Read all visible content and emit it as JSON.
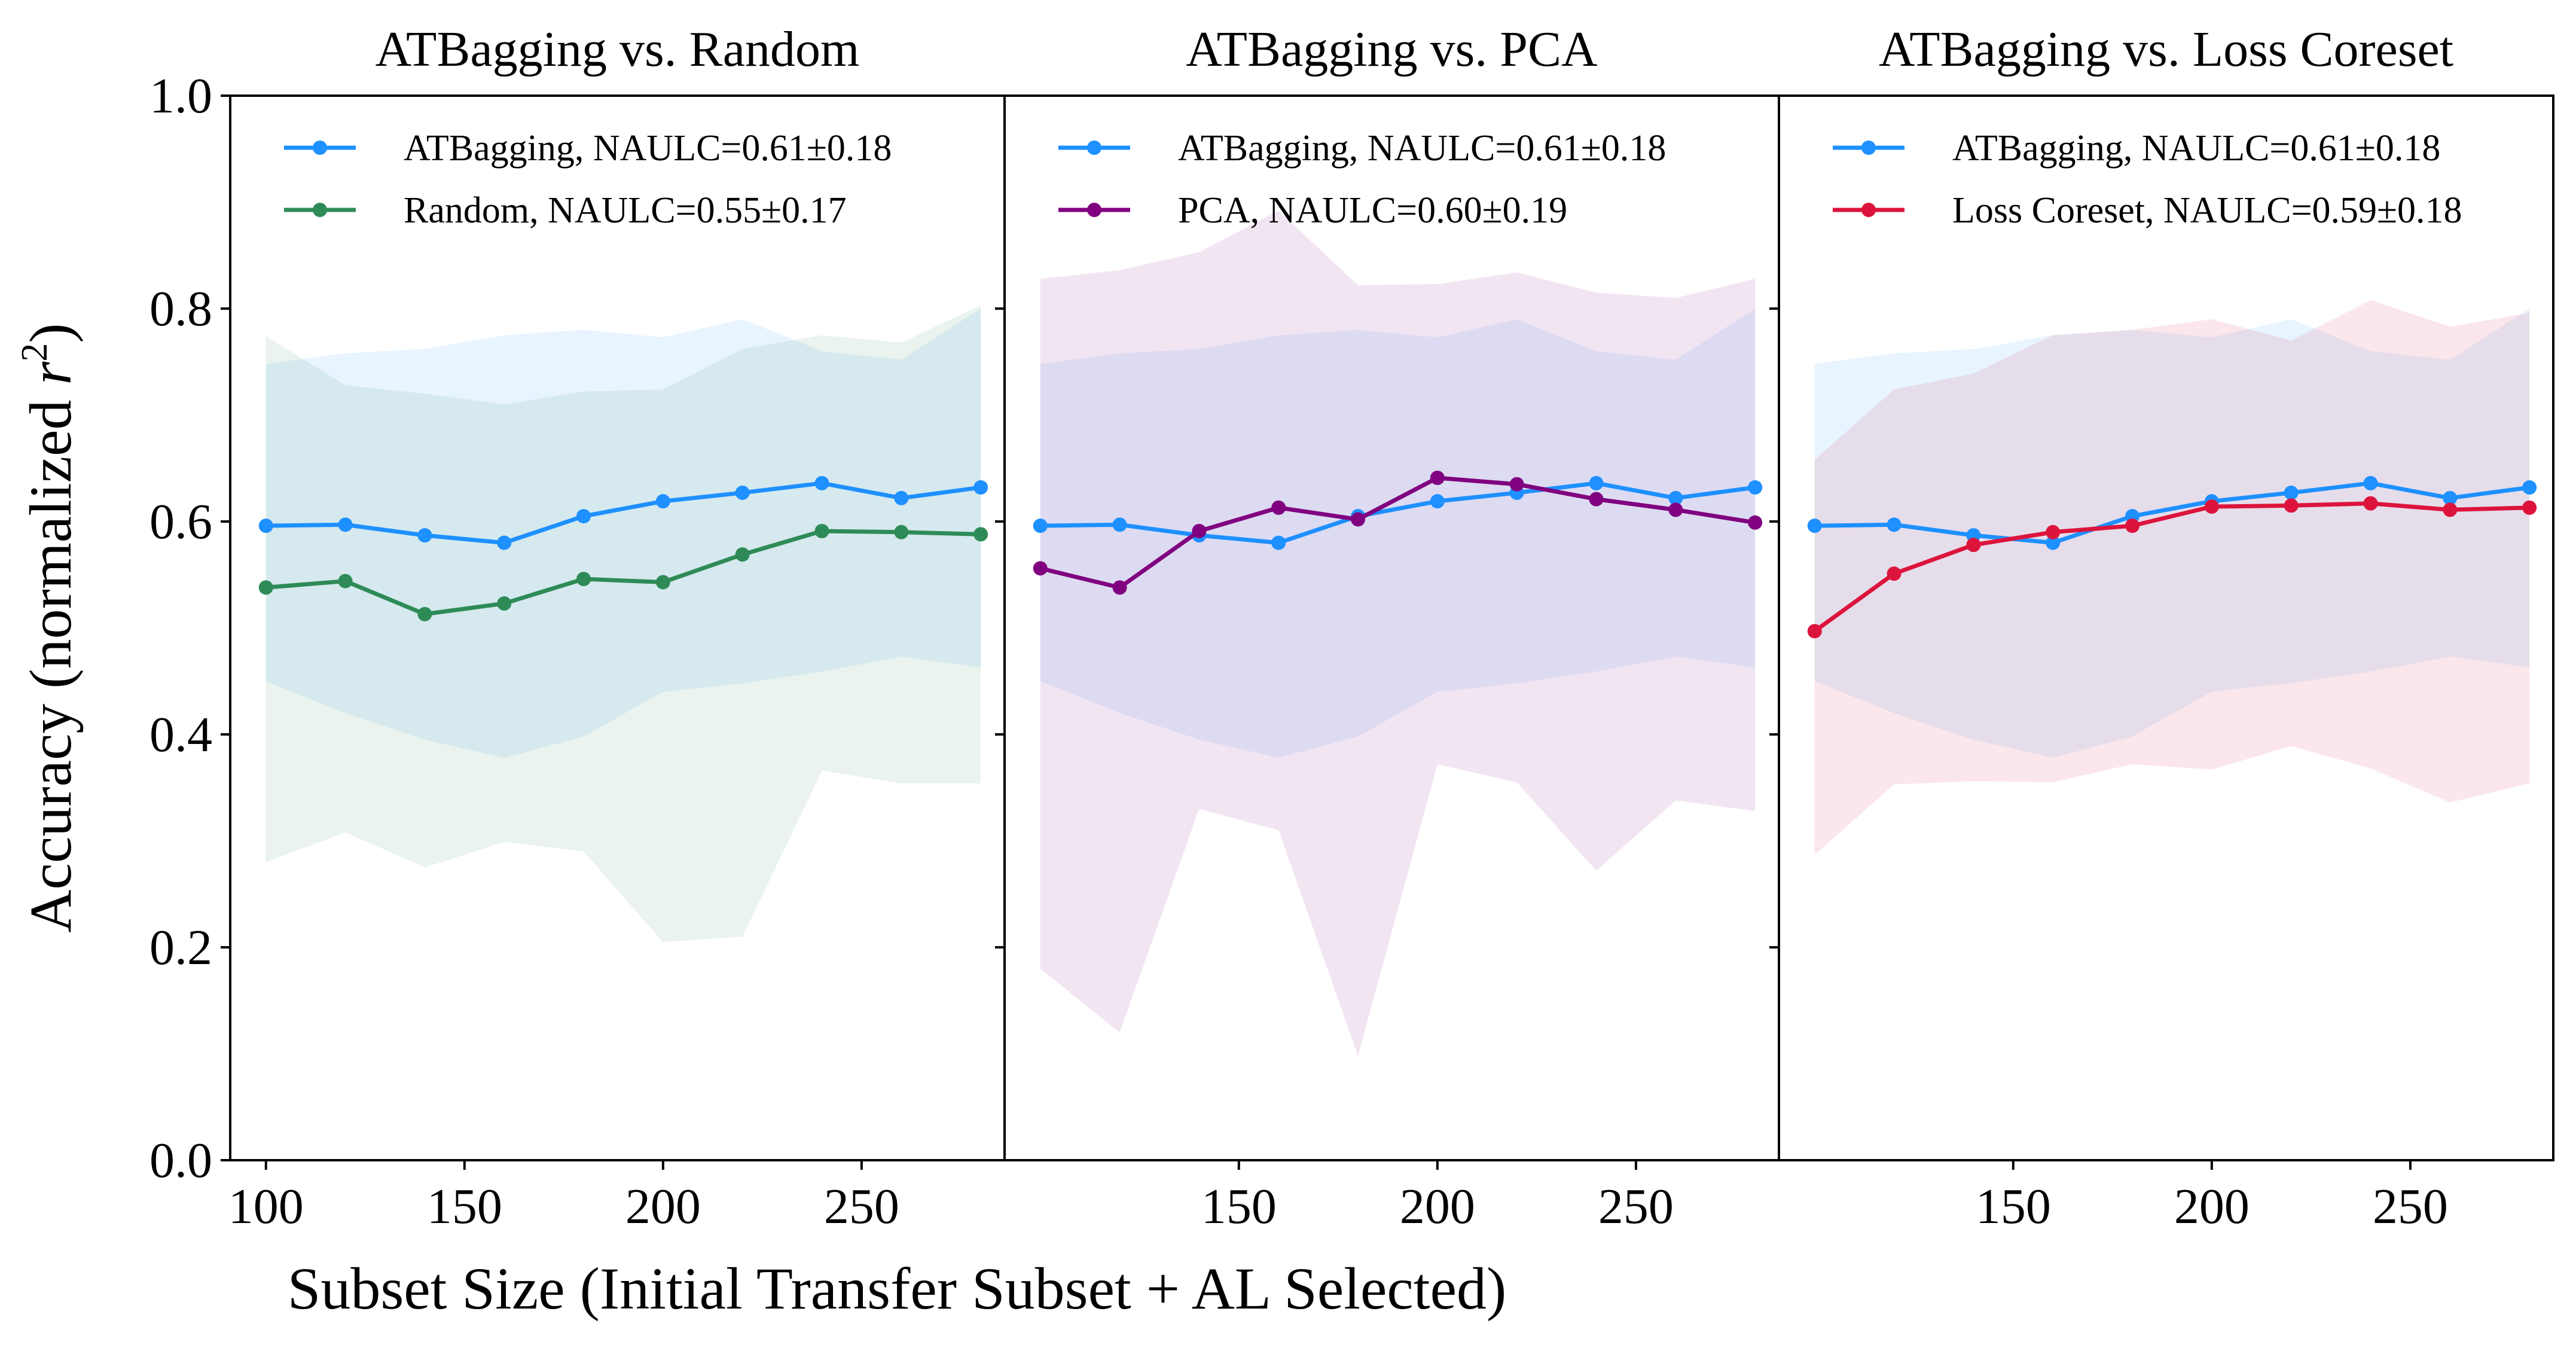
{
  "figure": {
    "ylabel": "Accuracy (normalized r²)",
    "xlabel": "Subset Size (Initial Transfer Subset + AL Selected)",
    "yticks": [
      "0.0",
      "0.2",
      "0.4",
      "0.6",
      "0.8",
      "1.0"
    ]
  },
  "chart_data": [
    {
      "type": "line",
      "title": "ATBagging vs. Random",
      "xlim": [
        91,
        286
      ],
      "ylim": [
        0,
        1
      ],
      "xticks": [
        100,
        150,
        200,
        250
      ],
      "legend_loc": "upper-left",
      "series": [
        {
          "name": "ATBagging",
          "label": "ATBagging, NAULC=0.61±0.18",
          "color": "#1e90ff",
          "x": [
            100,
            120,
            140,
            160,
            180,
            200,
            220,
            240,
            260,
            280
          ],
          "y": [
            0.596,
            0.597,
            0.587,
            0.58,
            0.605,
            0.619,
            0.627,
            0.636,
            0.622,
            0.632
          ],
          "lower": [
            0.45,
            0.42,
            0.395,
            0.378,
            0.398,
            0.44,
            0.448,
            0.459,
            0.473,
            0.463
          ],
          "upper": [
            0.748,
            0.758,
            0.762,
            0.775,
            0.78,
            0.773,
            0.79,
            0.76,
            0.752,
            0.8
          ]
        },
        {
          "name": "Random",
          "label": "Random, NAULC=0.55±0.17",
          "color": "#2e8b57",
          "x": [
            100,
            120,
            140,
            160,
            180,
            200,
            220,
            240,
            260,
            280
          ],
          "y": [
            0.538,
            0.544,
            0.513,
            0.523,
            0.546,
            0.543,
            0.569,
            0.591,
            0.59,
            0.588
          ],
          "lower": [
            0.28,
            0.308,
            0.275,
            0.299,
            0.29,
            0.205,
            0.21,
            0.366,
            0.354,
            0.354
          ],
          "upper": [
            0.774,
            0.728,
            0.72,
            0.71,
            0.722,
            0.724,
            0.762,
            0.775,
            0.768,
            0.803
          ]
        }
      ]
    },
    {
      "type": "line",
      "title": "ATBagging vs. PCA",
      "xlim": [
        91,
        286
      ],
      "ylim": [
        0,
        1
      ],
      "xticks": [
        150,
        200,
        250
      ],
      "legend_loc": "upper-left",
      "series": [
        {
          "name": "ATBagging",
          "label": "ATBagging, NAULC=0.61±0.18",
          "color": "#1e90ff",
          "x": [
            100,
            120,
            140,
            160,
            180,
            200,
            220,
            240,
            260,
            280
          ],
          "y": [
            0.596,
            0.597,
            0.587,
            0.58,
            0.605,
            0.619,
            0.627,
            0.636,
            0.622,
            0.632
          ],
          "lower": [
            0.45,
            0.42,
            0.395,
            0.378,
            0.398,
            0.44,
            0.448,
            0.459,
            0.473,
            0.463
          ],
          "upper": [
            0.748,
            0.758,
            0.762,
            0.775,
            0.78,
            0.773,
            0.79,
            0.76,
            0.752,
            0.8
          ]
        },
        {
          "name": "PCA",
          "label": "PCA, NAULC=0.60±0.19",
          "color": "#800080",
          "x": [
            100,
            120,
            140,
            160,
            180,
            200,
            220,
            240,
            260,
            280
          ],
          "y": [
            0.556,
            0.538,
            0.591,
            0.613,
            0.602,
            0.641,
            0.635,
            0.621,
            0.611,
            0.599
          ],
          "lower": [
            0.18,
            0.12,
            0.33,
            0.31,
            0.098,
            0.372,
            0.355,
            0.272,
            0.338,
            0.328
          ],
          "upper": [
            0.828,
            0.836,
            0.853,
            0.892,
            0.822,
            0.823,
            0.834,
            0.815,
            0.81,
            0.828
          ]
        }
      ]
    },
    {
      "type": "line",
      "title": "ATBagging vs. Loss Coreset",
      "xlim": [
        91,
        286
      ],
      "ylim": [
        0,
        1
      ],
      "xticks": [
        150,
        200,
        250
      ],
      "legend_loc": "upper-left",
      "series": [
        {
          "name": "ATBagging",
          "label": "ATBagging, NAULC=0.61±0.18",
          "color": "#1e90ff",
          "x": [
            100,
            120,
            140,
            160,
            180,
            200,
            220,
            240,
            260,
            280
          ],
          "y": [
            0.596,
            0.597,
            0.587,
            0.58,
            0.605,
            0.619,
            0.627,
            0.636,
            0.622,
            0.632
          ],
          "lower": [
            0.45,
            0.42,
            0.395,
            0.378,
            0.398,
            0.44,
            0.448,
            0.459,
            0.473,
            0.463
          ],
          "upper": [
            0.748,
            0.758,
            0.762,
            0.775,
            0.78,
            0.773,
            0.79,
            0.76,
            0.752,
            0.8
          ]
        },
        {
          "name": "Loss Coreset",
          "label": "Loss Coreset, NAULC=0.59±0.18",
          "color": "#dc143c",
          "x": [
            100,
            120,
            140,
            160,
            180,
            200,
            220,
            240,
            260,
            280
          ],
          "y": [
            0.497,
            0.551,
            0.578,
            0.59,
            0.596,
            0.614,
            0.615,
            0.617,
            0.611,
            0.613
          ],
          "lower": [
            0.287,
            0.353,
            0.356,
            0.355,
            0.372,
            0.367,
            0.389,
            0.368,
            0.336,
            0.354
          ],
          "upper": [
            0.658,
            0.724,
            0.739,
            0.775,
            0.78,
            0.79,
            0.77,
            0.808,
            0.783,
            0.796
          ]
        }
      ]
    }
  ]
}
